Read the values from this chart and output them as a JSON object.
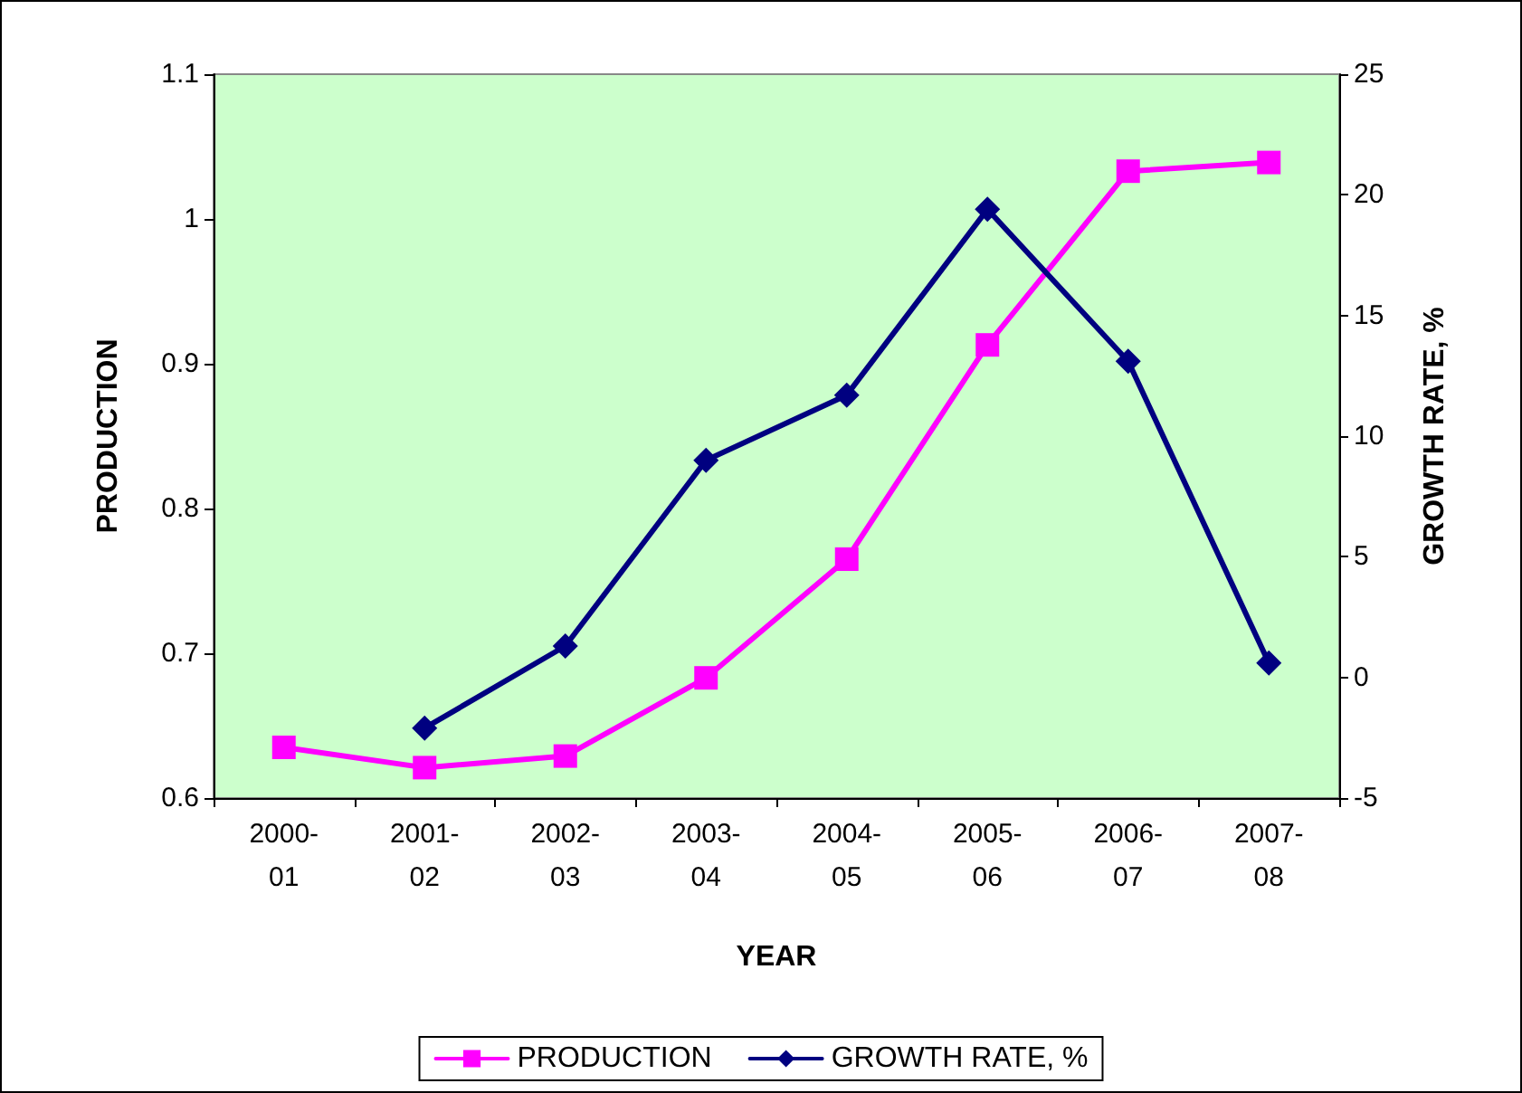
{
  "chart_data": {
    "type": "line",
    "xlabel": "YEAR",
    "ylabel": "PRODUCTION",
    "y2label": "GROWTH RATE, %",
    "categories": [
      "2000-01",
      "2001-02",
      "2002-03",
      "2003-04",
      "2004-05",
      "2005-06",
      "2006-07",
      "2007-08"
    ],
    "series": [
      {
        "name": "PRODUCTION",
        "color": "#ff00ff",
        "marker": "square",
        "values": [
          0.635,
          0.621,
          0.629,
          0.683,
          0.765,
          0.913,
          1.033,
          1.039
        ]
      },
      {
        "name": "GROWTH RATE, %",
        "color": "#000080",
        "marker": "diamond",
        "axis": "y2",
        "values": [
          null,
          -2.1,
          1.3,
          9.0,
          11.7,
          19.4,
          13.1,
          0.6
        ]
      }
    ],
    "ylim": [
      0.6,
      1.1
    ],
    "yticks": [
      0.6,
      0.7,
      0.8,
      0.9,
      1,
      1.1
    ],
    "y2lim": [
      -5,
      25
    ],
    "y2ticks": [
      -5,
      0,
      5,
      10,
      15,
      20,
      25
    ],
    "grid": false,
    "legend": "bottom",
    "line_style": "solid"
  }
}
